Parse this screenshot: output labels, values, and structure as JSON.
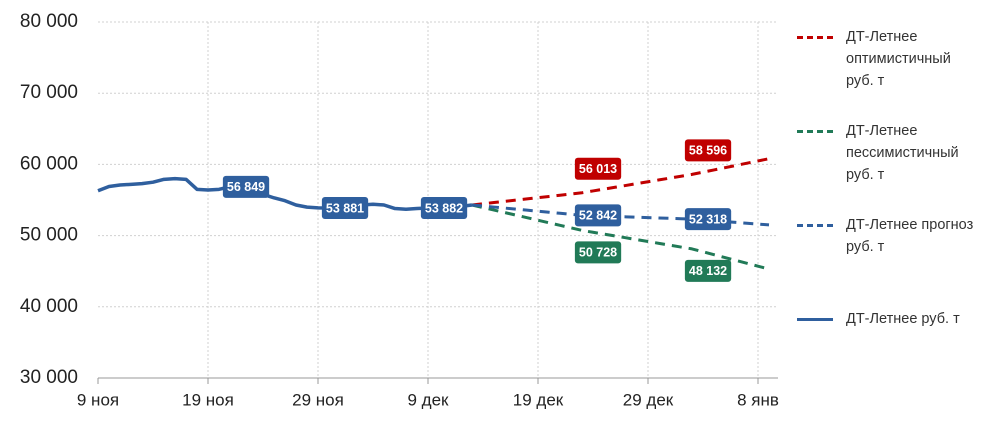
{
  "chart_data": {
    "type": "line",
    "categories": [
      "9 ноя",
      null,
      null,
      null,
      null,
      null,
      null,
      null,
      null,
      null,
      "19 ноя",
      null,
      null,
      null,
      null,
      null,
      null,
      null,
      null,
      null,
      "29 ноя",
      null,
      null,
      null,
      null,
      null,
      null,
      null,
      null,
      null,
      "9 дек",
      null,
      null,
      null,
      null,
      null,
      null,
      null,
      null,
      null,
      "19 дек",
      null,
      null,
      null,
      null,
      null,
      null,
      null,
      null,
      null,
      "29 дек",
      null,
      null,
      null,
      null,
      null,
      null,
      null,
      null,
      null,
      "8 янв",
      null
    ],
    "series": [
      {
        "name": "ДТ-Летнее оптимистичный руб. т",
        "color": "#c00000",
        "linestyle": "dashed",
        "values": [
          null,
          null,
          null,
          null,
          null,
          null,
          null,
          null,
          null,
          null,
          null,
          null,
          null,
          null,
          null,
          null,
          null,
          null,
          null,
          null,
          null,
          null,
          null,
          null,
          null,
          null,
          null,
          null,
          null,
          null,
          null,
          null,
          null,
          null,
          54300,
          54471,
          54643,
          54814,
          54985,
          55157,
          55328,
          55499,
          55670,
          55842,
          56013,
          56271,
          56530,
          56788,
          57046,
          57305,
          57563,
          57821,
          58080,
          58338,
          58596,
          58911,
          59226,
          59541,
          59856,
          60170,
          60485,
          60800
        ],
        "value_labels": [
          null,
          null,
          null,
          null,
          null,
          null,
          null,
          null,
          null,
          null,
          null,
          null,
          null,
          null,
          null,
          null,
          null,
          null,
          null,
          null,
          null,
          null,
          null,
          null,
          null,
          null,
          null,
          null,
          null,
          null,
          null,
          null,
          null,
          null,
          null,
          null,
          null,
          null,
          null,
          null,
          null,
          null,
          null,
          null,
          "56 013",
          null,
          null,
          null,
          null,
          null,
          null,
          null,
          null,
          null,
          "58 596",
          null,
          null,
          null,
          null,
          null,
          null,
          null
        ]
      },
      {
        "name": "ДТ-Летнее пессимистичный руб. т",
        "color": "#217a57",
        "linestyle": "dashed",
        "values": [
          null,
          null,
          null,
          null,
          null,
          null,
          null,
          null,
          null,
          null,
          null,
          null,
          null,
          null,
          null,
          null,
          null,
          null,
          null,
          null,
          null,
          null,
          null,
          null,
          null,
          null,
          null,
          null,
          null,
          null,
          null,
          null,
          null,
          null,
          54300,
          53943,
          53586,
          53228,
          52871,
          52514,
          52157,
          51800,
          51442,
          51085,
          50728,
          50468,
          50209,
          49949,
          49690,
          49430,
          49170,
          48911,
          48651,
          48392,
          48132,
          47727,
          47323,
          46918,
          46514,
          46109,
          45705,
          45300
        ],
        "value_labels": [
          null,
          null,
          null,
          null,
          null,
          null,
          null,
          null,
          null,
          null,
          null,
          null,
          null,
          null,
          null,
          null,
          null,
          null,
          null,
          null,
          null,
          null,
          null,
          null,
          null,
          null,
          null,
          null,
          null,
          null,
          null,
          null,
          null,
          null,
          null,
          null,
          null,
          null,
          null,
          null,
          null,
          null,
          null,
          null,
          "50 728",
          null,
          null,
          null,
          null,
          null,
          null,
          null,
          null,
          null,
          "48 132",
          null,
          null,
          null,
          null,
          null,
          null,
          null
        ]
      },
      {
        "name": "ДТ-Летнее прогноз руб. т",
        "color": "#2f5f9e",
        "linestyle": "dashed",
        "values": [
          null,
          null,
          null,
          null,
          null,
          null,
          null,
          null,
          null,
          null,
          null,
          null,
          null,
          null,
          null,
          null,
          null,
          null,
          null,
          null,
          null,
          null,
          null,
          null,
          null,
          null,
          null,
          null,
          null,
          null,
          null,
          null,
          null,
          null,
          54300,
          54154,
          54008,
          53862,
          53717,
          53571,
          53425,
          53279,
          53133,
          52988,
          52842,
          52790,
          52737,
          52685,
          52633,
          52580,
          52528,
          52475,
          52423,
          52370,
          52318,
          52201,
          52084,
          51967,
          51851,
          51734,
          51617,
          51500
        ],
        "value_labels": [
          null,
          null,
          null,
          null,
          null,
          null,
          null,
          null,
          null,
          null,
          null,
          null,
          null,
          null,
          null,
          null,
          null,
          null,
          null,
          null,
          null,
          null,
          null,
          null,
          null,
          null,
          null,
          null,
          null,
          null,
          null,
          null,
          null,
          null,
          null,
          null,
          null,
          null,
          null,
          null,
          null,
          null,
          null,
          null,
          "52 842",
          null,
          null,
          null,
          null,
          null,
          null,
          null,
          null,
          null,
          "52 318",
          null,
          null,
          null,
          null,
          null,
          null,
          null
        ]
      },
      {
        "name": "ДТ-Летнее руб. т",
        "color": "#2f5f9e",
        "linestyle": "solid",
        "values": [
          56300,
          56900,
          57100,
          57200,
          57300,
          57500,
          57900,
          58000,
          57900,
          56500,
          56400,
          56500,
          56849,
          56700,
          56300,
          55800,
          55300,
          54900,
          54300,
          54000,
          53900,
          53881,
          54100,
          54200,
          54300,
          54400,
          54300,
          53800,
          53700,
          53800,
          53882,
          53900,
          54000,
          54100,
          54300,
          null,
          null,
          null,
          null,
          null,
          null,
          null,
          null,
          null,
          null,
          null,
          null,
          null,
          null,
          null,
          null,
          null,
          null,
          null,
          null,
          null,
          null,
          null,
          null,
          null,
          null,
          null
        ],
        "value_labels": [
          null,
          null,
          null,
          null,
          null,
          null,
          null,
          null,
          null,
          null,
          null,
          null,
          "56 849",
          null,
          null,
          null,
          null,
          null,
          null,
          null,
          null,
          "53 881",
          null,
          null,
          null,
          null,
          null,
          null,
          null,
          null,
          "53 882",
          null,
          null,
          null,
          null,
          null,
          null,
          null,
          null,
          null,
          null,
          null,
          null,
          null,
          null,
          null,
          null,
          null,
          null,
          null,
          null,
          null,
          null,
          null,
          null,
          null,
          null,
          null,
          null,
          null,
          null,
          null
        ]
      }
    ],
    "ylim": [
      30000,
      80000
    ],
    "yticks": [
      {
        "value": 30000,
        "label": "30 000"
      },
      {
        "value": 40000,
        "label": "40 000"
      },
      {
        "value": 50000,
        "label": "50 000"
      },
      {
        "value": 60000,
        "label": "60 000"
      },
      {
        "value": 70000,
        "label": "70 000"
      },
      {
        "value": 80000,
        "label": "80 000"
      }
    ],
    "grid": true,
    "legend": "right"
  }
}
